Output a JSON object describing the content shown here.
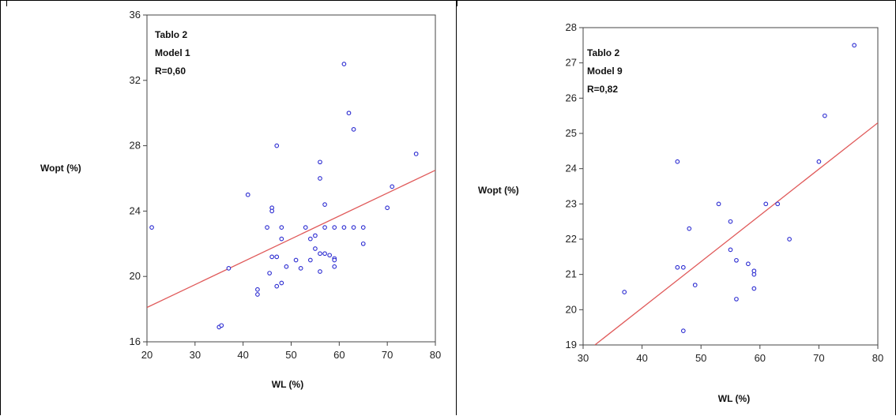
{
  "colors": {
    "points": "#2b2bd1",
    "fit_line": "#e05a5a",
    "axis": "#444444"
  },
  "chart_data": [
    {
      "type": "scatter",
      "title": "",
      "annotation": [
        "Tablo 2",
        "Model 1",
        "R=0,60"
      ],
      "xlabel": "WL (%)",
      "ylabel": "Wopt (%)",
      "xlim": [
        20,
        80
      ],
      "ylim": [
        16,
        36
      ],
      "xticks": [
        20,
        30,
        40,
        50,
        60,
        70,
        80
      ],
      "yticks": [
        16,
        20,
        24,
        28,
        32,
        36
      ],
      "points": [
        [
          21,
          23
        ],
        [
          35,
          16.9
        ],
        [
          35.5,
          17
        ],
        [
          37,
          20.5
        ],
        [
          41,
          25
        ],
        [
          43,
          19.2
        ],
        [
          43,
          18.9
        ],
        [
          45,
          23
        ],
        [
          45.5,
          20.2
        ],
        [
          46,
          24.2
        ],
        [
          46,
          24
        ],
        [
          46,
          21.2
        ],
        [
          47,
          21.2
        ],
        [
          47,
          28
        ],
        [
          47,
          19.4
        ],
        [
          48,
          23
        ],
        [
          48,
          22.3
        ],
        [
          48,
          19.6
        ],
        [
          49,
          20.6
        ],
        [
          51,
          21
        ],
        [
          52,
          20.5
        ],
        [
          53,
          23
        ],
        [
          54,
          22.3
        ],
        [
          54,
          21
        ],
        [
          55,
          22.5
        ],
        [
          55,
          21.7
        ],
        [
          56,
          27
        ],
        [
          56,
          26
        ],
        [
          56,
          21.4
        ],
        [
          56,
          20.3
        ],
        [
          57,
          24.4
        ],
        [
          57,
          23
        ],
        [
          57,
          21.4
        ],
        [
          58,
          21.3
        ],
        [
          59,
          23
        ],
        [
          59,
          21.1
        ],
        [
          59,
          21
        ],
        [
          59,
          20.6
        ],
        [
          61,
          33
        ],
        [
          61,
          23
        ],
        [
          62,
          30
        ],
        [
          63,
          29
        ],
        [
          63,
          23
        ],
        [
          65,
          23
        ],
        [
          65,
          22
        ],
        [
          70,
          24.2
        ],
        [
          71,
          25.5
        ],
        [
          76,
          27.5
        ]
      ],
      "fit_line": [
        [
          20,
          18.1
        ],
        [
          80,
          26.5
        ]
      ]
    },
    {
      "type": "scatter",
      "title": "",
      "annotation": [
        "Tablo 2",
        "Model 9",
        "R=0,82"
      ],
      "xlabel": "WL (%)",
      "ylabel": "Wopt (%)",
      "xlim": [
        30,
        80
      ],
      "ylim": [
        19,
        28
      ],
      "xticks": [
        30,
        40,
        50,
        60,
        70,
        80
      ],
      "yticks": [
        19,
        20,
        21,
        22,
        23,
        24,
        25,
        26,
        27,
        28
      ],
      "points": [
        [
          37,
          20.5
        ],
        [
          46,
          24.2
        ],
        [
          46,
          21.2
        ],
        [
          47,
          21.2
        ],
        [
          47,
          19.4
        ],
        [
          48,
          22.3
        ],
        [
          49,
          20.7
        ],
        [
          53,
          23
        ],
        [
          55,
          22.5
        ],
        [
          55,
          21.7
        ],
        [
          56,
          21.4
        ],
        [
          56,
          20.3
        ],
        [
          58,
          21.3
        ],
        [
          59,
          21.1
        ],
        [
          59,
          21
        ],
        [
          59,
          20.6
        ],
        [
          61,
          23
        ],
        [
          63,
          23
        ],
        [
          65,
          22
        ],
        [
          70,
          24.2
        ],
        [
          71,
          25.5
        ],
        [
          76,
          27.5
        ]
      ],
      "fit_line": [
        [
          32,
          19
        ],
        [
          80,
          25.3
        ]
      ]
    }
  ]
}
